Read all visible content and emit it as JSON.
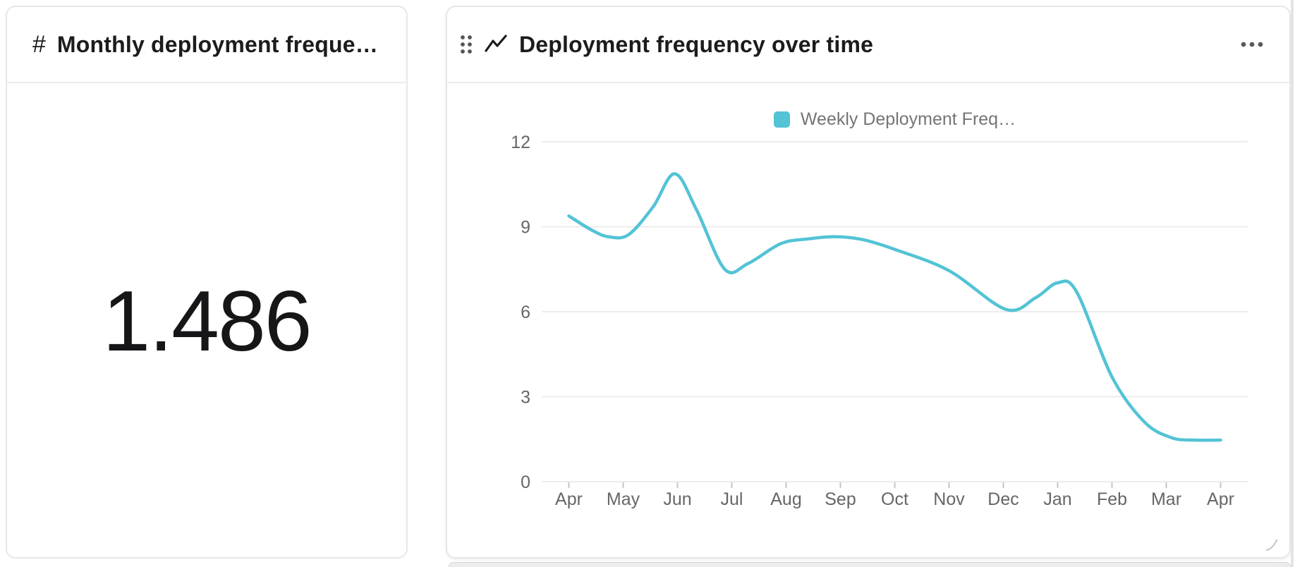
{
  "cards": {
    "kpi": {
      "type_icon": "hash-icon",
      "title": "Monthly deployment frequen…"
    },
    "chart": {
      "drag_icon": "drag-handle-icon",
      "type_icon": "line-chart-icon",
      "title": "Deployment frequency over time",
      "menu_icon": "ellipsis-icon",
      "resize_icon": "resize-grip-icon"
    }
  },
  "chart_data": [
    {
      "type": "number",
      "title": "Monthly deployment frequen…",
      "value": "1.486"
    },
    {
      "type": "line",
      "title": "Deployment frequency over time",
      "categories": [
        "Apr",
        "May",
        "Jun",
        "Jul",
        "Aug",
        "Sep",
        "Oct",
        "Nov",
        "Dec",
        "Jan",
        "Feb",
        "Mar",
        "Apr"
      ],
      "series": [
        {
          "name": "Weekly Deployment Freq…",
          "color": "#53C3D5",
          "values": [
            9.4,
            8.7,
            10.9,
            7.6,
            8.5,
            8.6,
            8.2,
            7.5,
            6.1,
            7.0,
            3.7,
            1.6,
            1.5
          ],
          "curve_points": [
            [
              0,
              9.38
            ],
            [
              0.45,
              8.85
            ],
            [
              0.75,
              8.64
            ],
            [
              1.1,
              8.72
            ],
            [
              1.55,
              9.7
            ],
            [
              1.95,
              10.87
            ],
            [
              2.35,
              9.6
            ],
            [
              2.87,
              7.5
            ],
            [
              3.3,
              7.7
            ],
            [
              3.9,
              8.4
            ],
            [
              4.4,
              8.57
            ],
            [
              4.9,
              8.65
            ],
            [
              5.4,
              8.55
            ],
            [
              6,
              8.2
            ],
            [
              7,
              7.45
            ],
            [
              8.05,
              6.08
            ],
            [
              8.6,
              6.5
            ],
            [
              9,
              7.02
            ],
            [
              9.35,
              6.7
            ],
            [
              10,
              3.7
            ],
            [
              10.6,
              2.1
            ],
            [
              11.1,
              1.55
            ],
            [
              11.5,
              1.47
            ],
            [
              12,
              1.47
            ]
          ]
        }
      ],
      "y_ticks": [
        0,
        3,
        6,
        9,
        12
      ],
      "ylim": [
        0,
        12
      ],
      "xlabel": "",
      "ylabel": "",
      "grid": true,
      "smooth": true,
      "legend_position": "top-center"
    }
  ],
  "colors": {
    "line": "#53C3D5",
    "axis_label": "#666666",
    "legend_text": "#757575",
    "gridline": "#ececec",
    "tick": "#c6c6c8"
  }
}
